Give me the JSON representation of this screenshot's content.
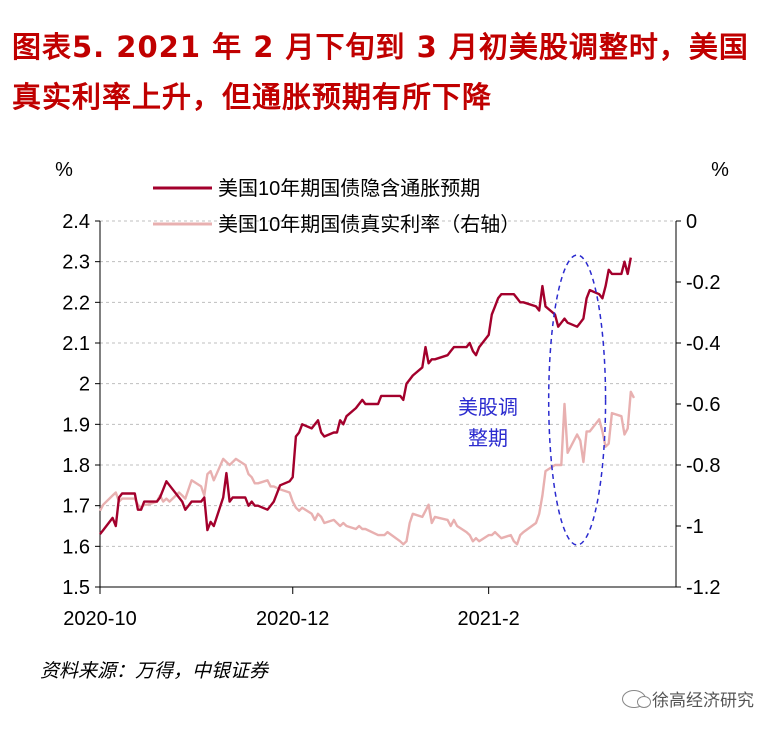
{
  "title": "图表5. 2021年2月下旬到3月初美股调整时，美国真实利率上升，但通胀预期有所下降",
  "title_line1": "图表5.  2021 年 2 月下旬到 3 月初美股调整时，美国",
  "title_line2": "真实利率上升，但通胀预期有所下降",
  "source": "资料来源：万得，中银证券",
  "watermark": "徐高经济研究",
  "watermark_icon": "wechat-icon",
  "chart_data": {
    "type": "line",
    "left_unit": "%",
    "right_unit": "%",
    "y_left": {
      "min": 1.5,
      "max": 2.4,
      "ticks": [
        "2.4",
        "2.3",
        "2.2",
        "2.1",
        "2",
        "1.9",
        "1.8",
        "1.7",
        "1.6",
        "1.5"
      ]
    },
    "y_right": {
      "min": -1.2,
      "max": 0,
      "ticks": [
        "0",
        "-0.2",
        "-0.4",
        "-0.6",
        "-0.8",
        "-1",
        "-1.2"
      ]
    },
    "x_ticks": [
      {
        "label": "2020-10",
        "date": "2020-10-01"
      },
      {
        "label": "2020-12",
        "date": "2020-12-01"
      },
      {
        "label": "2021-2",
        "date": "2021-02-01"
      }
    ],
    "x_range": [
      "2020-10-01",
      "2021-03-19"
    ],
    "grid": "horizontal-dashed",
    "legend_position": "top",
    "annotation": {
      "text_line1": "美股调",
      "text_line2": "整期",
      "color": "#2b2bcf",
      "start": "2021-02-20",
      "end": "2021-03-10"
    },
    "series": [
      {
        "name": "美国10年期国债隐含通胀预期",
        "axis": "left",
        "color": "#a3002c",
        "points": [
          [
            "2020-10-01",
            1.63
          ],
          [
            "2020-10-02",
            1.64
          ],
          [
            "2020-10-05",
            1.67
          ],
          [
            "2020-10-06",
            1.65
          ],
          [
            "2020-10-07",
            1.72
          ],
          [
            "2020-10-08",
            1.73
          ],
          [
            "2020-10-09",
            1.73
          ],
          [
            "2020-10-12",
            1.73
          ],
          [
            "2020-10-13",
            1.69
          ],
          [
            "2020-10-14",
            1.69
          ],
          [
            "2020-10-15",
            1.71
          ],
          [
            "2020-10-16",
            1.71
          ],
          [
            "2020-10-19",
            1.71
          ],
          [
            "2020-10-20",
            1.72
          ],
          [
            "2020-10-21",
            1.74
          ],
          [
            "2020-10-22",
            1.76
          ],
          [
            "2020-10-23",
            1.75
          ],
          [
            "2020-10-26",
            1.72
          ],
          [
            "2020-10-27",
            1.71
          ],
          [
            "2020-10-28",
            1.69
          ],
          [
            "2020-10-29",
            1.7
          ],
          [
            "2020-10-30",
            1.71
          ],
          [
            "2020-11-02",
            1.71
          ],
          [
            "2020-11-03",
            1.72
          ],
          [
            "2020-11-04",
            1.64
          ],
          [
            "2020-11-05",
            1.66
          ],
          [
            "2020-11-06",
            1.65
          ],
          [
            "2020-11-09",
            1.72
          ],
          [
            "2020-11-10",
            1.78
          ],
          [
            "2020-11-11",
            1.71
          ],
          [
            "2020-11-12",
            1.72
          ],
          [
            "2020-11-13",
            1.72
          ],
          [
            "2020-11-16",
            1.72
          ],
          [
            "2020-11-17",
            1.7
          ],
          [
            "2020-11-18",
            1.71
          ],
          [
            "2020-11-19",
            1.7
          ],
          [
            "2020-11-20",
            1.7
          ],
          [
            "2020-11-23",
            1.69
          ],
          [
            "2020-11-24",
            1.7
          ],
          [
            "2020-11-25",
            1.71
          ],
          [
            "2020-11-27",
            1.75
          ],
          [
            "2020-11-30",
            1.76
          ],
          [
            "2020-12-01",
            1.77
          ],
          [
            "2020-12-02",
            1.87
          ],
          [
            "2020-12-03",
            1.88
          ],
          [
            "2020-12-04",
            1.9
          ],
          [
            "2020-12-07",
            1.89
          ],
          [
            "2020-12-08",
            1.9
          ],
          [
            "2020-12-09",
            1.91
          ],
          [
            "2020-12-10",
            1.88
          ],
          [
            "2020-12-11",
            1.87
          ],
          [
            "2020-12-14",
            1.88
          ],
          [
            "2020-12-15",
            1.88
          ],
          [
            "2020-12-16",
            1.91
          ],
          [
            "2020-12-17",
            1.9
          ],
          [
            "2020-12-18",
            1.92
          ],
          [
            "2020-12-21",
            1.94
          ],
          [
            "2020-12-22",
            1.95
          ],
          [
            "2020-12-23",
            1.96
          ],
          [
            "2020-12-24",
            1.95
          ],
          [
            "2020-12-28",
            1.95
          ],
          [
            "2020-12-29",
            1.97
          ],
          [
            "2020-12-30",
            1.97
          ],
          [
            "2020-12-31",
            1.97
          ],
          [
            "2021-01-04",
            1.97
          ],
          [
            "2021-01-05",
            1.96
          ],
          [
            "2021-01-06",
            2.0
          ],
          [
            "2021-01-07",
            2.01
          ],
          [
            "2021-01-08",
            2.02
          ],
          [
            "2021-01-11",
            2.04
          ],
          [
            "2021-01-12",
            2.09
          ],
          [
            "2021-01-13",
            2.05
          ],
          [
            "2021-01-14",
            2.06
          ],
          [
            "2021-01-15",
            2.06
          ],
          [
            "2021-01-19",
            2.07
          ],
          [
            "2021-01-20",
            2.08
          ],
          [
            "2021-01-21",
            2.09
          ],
          [
            "2021-01-22",
            2.09
          ],
          [
            "2021-01-25",
            2.09
          ],
          [
            "2021-01-26",
            2.1
          ],
          [
            "2021-01-27",
            2.08
          ],
          [
            "2021-01-28",
            2.07
          ],
          [
            "2021-01-29",
            2.09
          ],
          [
            "2021-02-01",
            2.12
          ],
          [
            "2021-02-02",
            2.17
          ],
          [
            "2021-02-03",
            2.19
          ],
          [
            "2021-02-04",
            2.21
          ],
          [
            "2021-02-05",
            2.22
          ],
          [
            "2021-02-08",
            2.22
          ],
          [
            "2021-02-09",
            2.22
          ],
          [
            "2021-02-10",
            2.21
          ],
          [
            "2021-02-11",
            2.2
          ],
          [
            "2021-02-12",
            2.2
          ],
          [
            "2021-02-16",
            2.19
          ],
          [
            "2021-02-17",
            2.18
          ],
          [
            "2021-02-18",
            2.24
          ],
          [
            "2021-02-19",
            2.19
          ],
          [
            "2021-02-22",
            2.17
          ],
          [
            "2021-02-23",
            2.14
          ],
          [
            "2021-02-24",
            2.15
          ],
          [
            "2021-02-25",
            2.16
          ],
          [
            "2021-02-26",
            2.15
          ],
          [
            "2021-03-01",
            2.14
          ],
          [
            "2021-03-02",
            2.15
          ],
          [
            "2021-03-03",
            2.16
          ],
          [
            "2021-03-04",
            2.21
          ],
          [
            "2021-03-05",
            2.23
          ],
          [
            "2021-03-08",
            2.22
          ],
          [
            "2021-03-09",
            2.21
          ],
          [
            "2021-03-10",
            2.24
          ],
          [
            "2021-03-11",
            2.28
          ],
          [
            "2021-03-12",
            2.27
          ],
          [
            "2021-03-15",
            2.27
          ],
          [
            "2021-03-16",
            2.3
          ],
          [
            "2021-03-17",
            2.27
          ],
          [
            "2021-03-18",
            2.31
          ]
        ]
      },
      {
        "name": "美国10年期国债真实利率（右轴）",
        "axis": "right",
        "color": "#e8b0b0",
        "points": [
          [
            "2020-10-01",
            -0.95
          ],
          [
            "2020-10-02",
            -0.93
          ],
          [
            "2020-10-05",
            -0.9
          ],
          [
            "2020-10-06",
            -0.89
          ],
          [
            "2020-10-07",
            -0.92
          ],
          [
            "2020-10-08",
            -0.91
          ],
          [
            "2020-10-09",
            -0.91
          ],
          [
            "2020-10-12",
            -0.91
          ],
          [
            "2020-10-13",
            -0.93
          ],
          [
            "2020-10-14",
            -0.94
          ],
          [
            "2020-10-15",
            -0.93
          ],
          [
            "2020-10-16",
            -0.93
          ],
          [
            "2020-10-19",
            -0.92
          ],
          [
            "2020-10-20",
            -0.9
          ],
          [
            "2020-10-21",
            -0.92
          ],
          [
            "2020-10-22",
            -0.91
          ],
          [
            "2020-10-23",
            -0.92
          ],
          [
            "2020-10-26",
            -0.89
          ],
          [
            "2020-10-27",
            -0.9
          ],
          [
            "2020-10-28",
            -0.91
          ],
          [
            "2020-10-29",
            -0.88
          ],
          [
            "2020-10-30",
            -0.85
          ],
          [
            "2020-11-02",
            -0.87
          ],
          [
            "2020-11-03",
            -0.9
          ],
          [
            "2020-11-04",
            -0.83
          ],
          [
            "2020-11-05",
            -0.82
          ],
          [
            "2020-11-06",
            -0.85
          ],
          [
            "2020-11-09",
            -0.78
          ],
          [
            "2020-11-10",
            -0.79
          ],
          [
            "2020-11-11",
            -0.8
          ],
          [
            "2020-11-12",
            -0.79
          ],
          [
            "2020-11-13",
            -0.78
          ],
          [
            "2020-11-16",
            -0.8
          ],
          [
            "2020-11-17",
            -0.83
          ],
          [
            "2020-11-18",
            -0.84
          ],
          [
            "2020-11-19",
            -0.86
          ],
          [
            "2020-11-20",
            -0.86
          ],
          [
            "2020-11-23",
            -0.85
          ],
          [
            "2020-11-24",
            -0.87
          ],
          [
            "2020-11-25",
            -0.87
          ],
          [
            "2020-11-27",
            -0.88
          ],
          [
            "2020-11-30",
            -0.89
          ],
          [
            "2020-12-01",
            -0.92
          ],
          [
            "2020-12-02",
            -0.94
          ],
          [
            "2020-12-03",
            -0.95
          ],
          [
            "2020-12-04",
            -0.94
          ],
          [
            "2020-12-07",
            -0.96
          ],
          [
            "2020-12-08",
            -0.98
          ],
          [
            "2020-12-09",
            -0.96
          ],
          [
            "2020-12-10",
            -0.97
          ],
          [
            "2020-12-11",
            -0.99
          ],
          [
            "2020-12-14",
            -0.98
          ],
          [
            "2020-12-15",
            -0.99
          ],
          [
            "2020-12-16",
            -1.0
          ],
          [
            "2020-12-17",
            -0.99
          ],
          [
            "2020-12-18",
            -1.0
          ],
          [
            "2020-12-21",
            -1.01
          ],
          [
            "2020-12-22",
            -1.0
          ],
          [
            "2020-12-23",
            -1.01
          ],
          [
            "2020-12-24",
            -1.01
          ],
          [
            "2020-12-28",
            -1.03
          ],
          [
            "2020-12-29",
            -1.03
          ],
          [
            "2020-12-30",
            -1.03
          ],
          [
            "2020-12-31",
            -1.02
          ],
          [
            "2021-01-04",
            -1.05
          ],
          [
            "2021-01-05",
            -1.06
          ],
          [
            "2021-01-06",
            -1.05
          ],
          [
            "2021-01-07",
            -0.99
          ],
          [
            "2021-01-08",
            -0.96
          ],
          [
            "2021-01-11",
            -0.97
          ],
          [
            "2021-01-12",
            -0.95
          ],
          [
            "2021-01-13",
            -0.93
          ],
          [
            "2021-01-14",
            -0.99
          ],
          [
            "2021-01-15",
            -0.97
          ],
          [
            "2021-01-19",
            -0.98
          ],
          [
            "2021-01-20",
            -1.0
          ],
          [
            "2021-01-21",
            -0.98
          ],
          [
            "2021-01-22",
            -1.0
          ],
          [
            "2021-01-25",
            -1.02
          ],
          [
            "2021-01-26",
            -1.03
          ],
          [
            "2021-01-27",
            -1.05
          ],
          [
            "2021-01-28",
            -1.04
          ],
          [
            "2021-01-29",
            -1.05
          ],
          [
            "2021-02-01",
            -1.03
          ],
          [
            "2021-02-02",
            -1.03
          ],
          [
            "2021-02-03",
            -1.02
          ],
          [
            "2021-02-04",
            -1.03
          ],
          [
            "2021-02-05",
            -1.04
          ],
          [
            "2021-02-08",
            -1.03
          ],
          [
            "2021-02-09",
            -1.05
          ],
          [
            "2021-02-10",
            -1.06
          ],
          [
            "2021-02-11",
            -1.03
          ],
          [
            "2021-02-12",
            -1.02
          ],
          [
            "2021-02-16",
            -0.99
          ],
          [
            "2021-02-17",
            -0.96
          ],
          [
            "2021-02-18",
            -0.9
          ],
          [
            "2021-02-19",
            -0.82
          ],
          [
            "2021-02-22",
            -0.8
          ],
          [
            "2021-02-23",
            -0.8
          ],
          [
            "2021-02-24",
            -0.8
          ],
          [
            "2021-02-25",
            -0.6
          ],
          [
            "2021-02-26",
            -0.76
          ],
          [
            "2021-03-01",
            -0.7
          ],
          [
            "2021-03-02",
            -0.72
          ],
          [
            "2021-03-03",
            -0.79
          ],
          [
            "2021-03-04",
            -0.69
          ],
          [
            "2021-03-05",
            -0.69
          ],
          [
            "2021-03-08",
            -0.65
          ],
          [
            "2021-03-09",
            -0.69
          ],
          [
            "2021-03-10",
            -0.74
          ],
          [
            "2021-03-11",
            -0.73
          ],
          [
            "2021-03-12",
            -0.63
          ],
          [
            "2021-03-15",
            -0.64
          ],
          [
            "2021-03-16",
            -0.7
          ],
          [
            "2021-03-17",
            -0.68
          ],
          [
            "2021-03-18",
            -0.56
          ],
          [
            "2021-03-19",
            -0.58
          ]
        ]
      }
    ]
  }
}
